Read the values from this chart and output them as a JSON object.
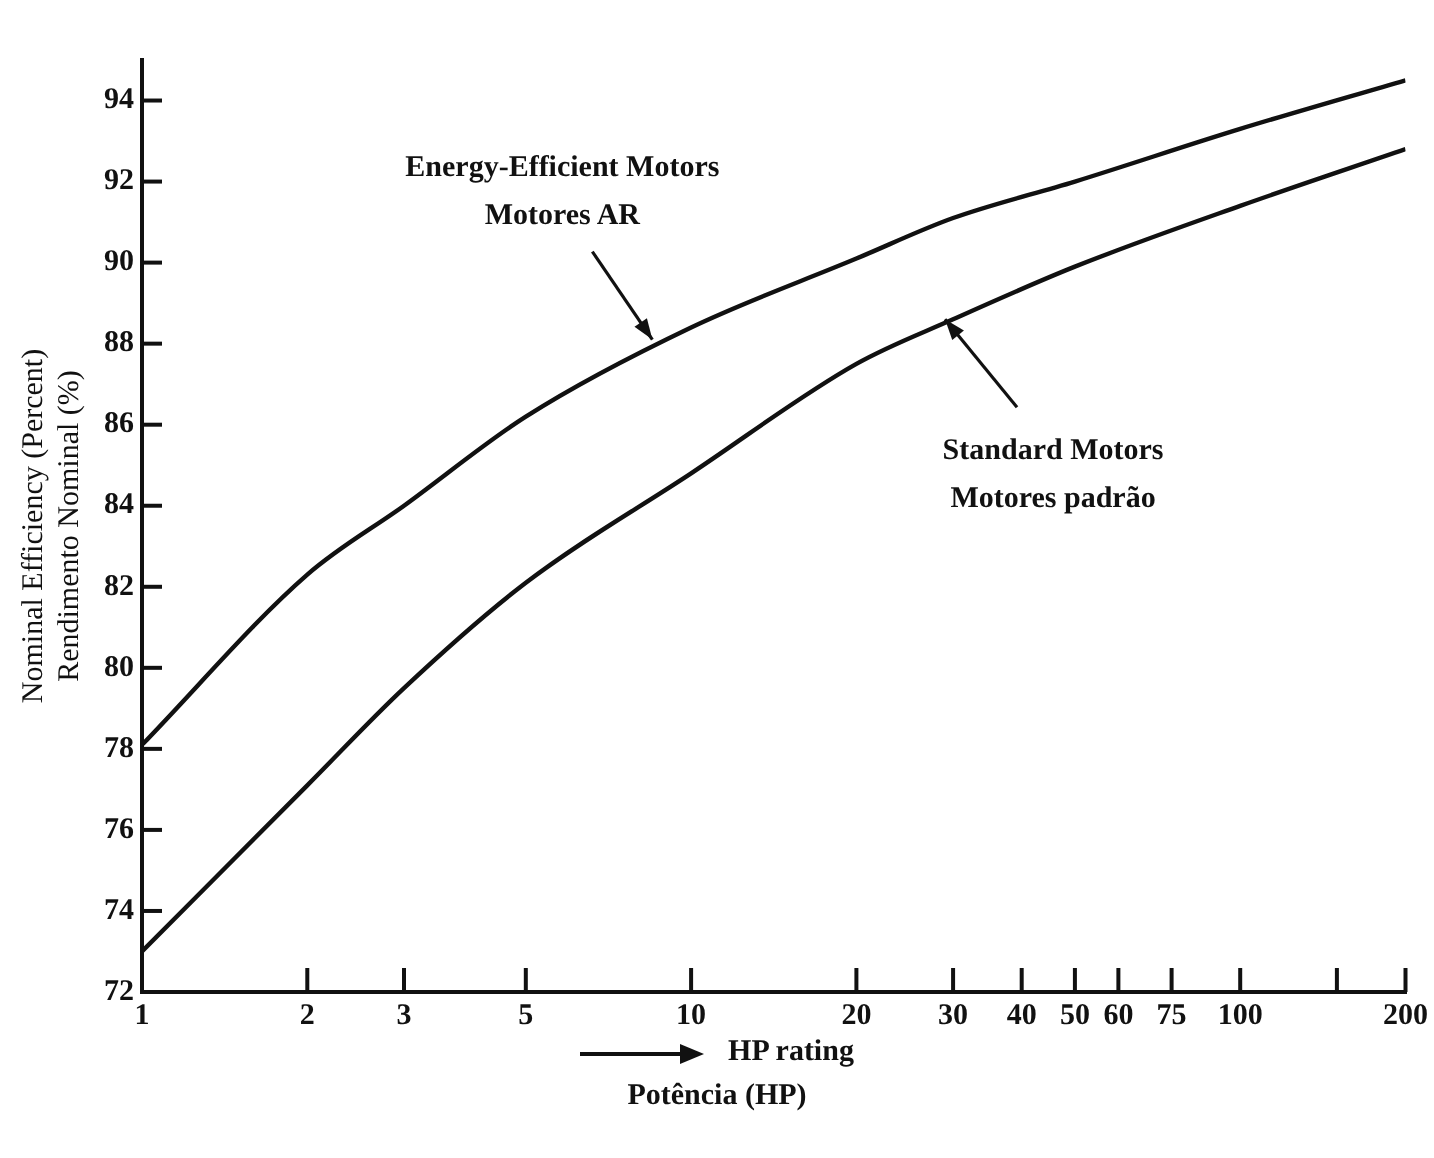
{
  "chart_data": {
    "type": "line",
    "ylabel": "Nominal Efficiency (Percent)\nRendimento Nominal (%)",
    "xlabel": "HP rating\nPotência (HP)",
    "log": "x",
    "grid": false,
    "legend": false,
    "marker": "none",
    "line_style": "solid",
    "xlim": [
      1,
      200
    ],
    "xticks": [
      1,
      2,
      3,
      5,
      10,
      20,
      30,
      40,
      50,
      60,
      75,
      100,
      {
        "value": 150,
        "label": null
      },
      200
    ],
    "ylim": [
      72,
      95
    ],
    "yticks": [
      72,
      74,
      76,
      78,
      80,
      82,
      84,
      86,
      88,
      90,
      92,
      94
    ],
    "series": [
      {
        "color": "#111111",
        "x": [
          1,
          2,
          3,
          5,
          10,
          20,
          30,
          50,
          100,
          200
        ],
        "values": [
          78.1,
          82.3,
          84.0,
          86.2,
          88.4,
          90.1,
          91.1,
          92.0,
          93.3,
          94.5
        ]
      },
      {
        "color": "#111111",
        "x": [
          1,
          2,
          3,
          5,
          10,
          20,
          30,
          50,
          100,
          200
        ],
        "values": [
          73.0,
          77.1,
          79.5,
          82.1,
          84.8,
          87.5,
          88.6,
          89.9,
          91.4,
          92.8
        ]
      }
    ],
    "annotations": [
      {
        "text": "Energy-Efficient Motors\nMotores AR",
        "x": 8.5,
        "y": 88.1
      },
      {
        "text": "Standard Motors\nMotores padrão",
        "x": 29,
        "y": 88.6
      }
    ]
  }
}
